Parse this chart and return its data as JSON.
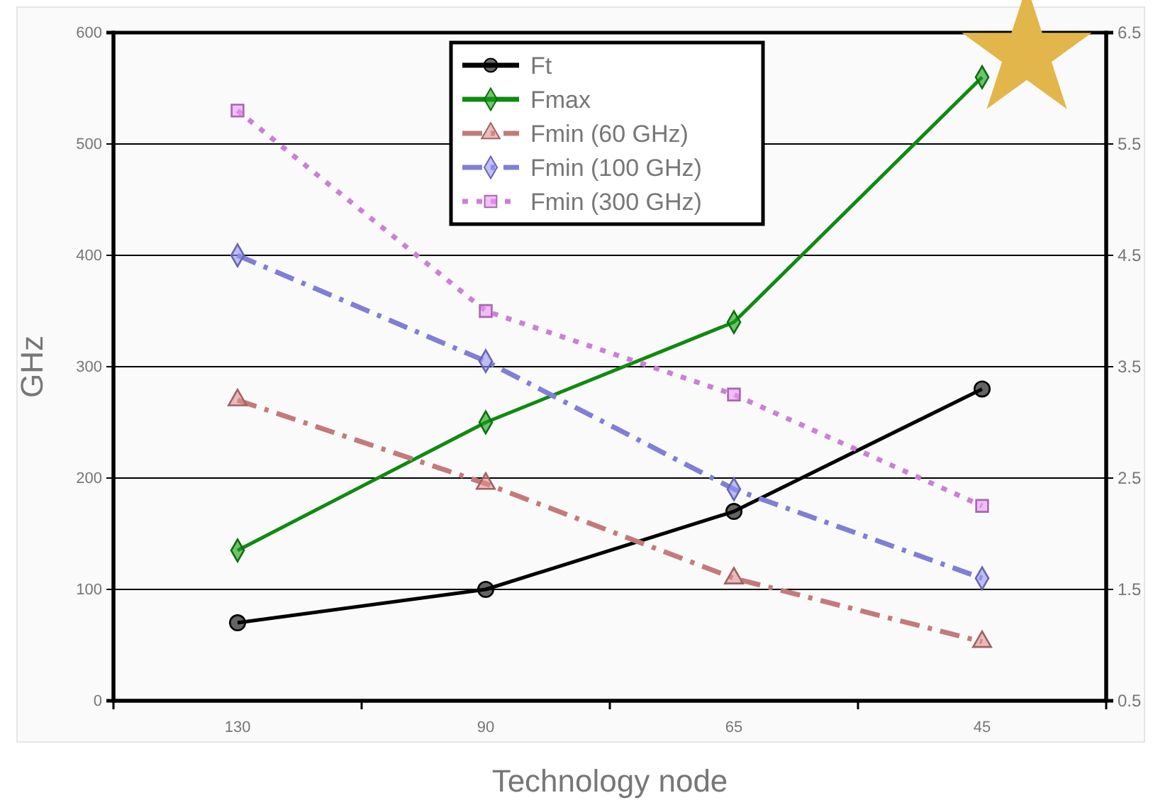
{
  "chart_data": {
    "type": "line",
    "xlabel": "Technology node",
    "ylabel": "GHz",
    "categories": [
      "130",
      "90",
      "65",
      "45"
    ],
    "ylim": [
      0,
      600
    ],
    "yticks": [
      0,
      100,
      200,
      300,
      400,
      500,
      600
    ],
    "y2lim": [
      0.5,
      6.5
    ],
    "y2ticks": [
      0.5,
      1.5,
      2.5,
      3.5,
      4.5,
      5.5,
      6.5
    ],
    "grid": "y",
    "legend": "top",
    "series": [
      {
        "name": "Ft",
        "color": "#000000",
        "marker": "circle",
        "line_style": "solid",
        "values": [
          70,
          100,
          170,
          280
        ]
      },
      {
        "name": "Fmax",
        "color": "#108a10",
        "marker": "diamond",
        "line_style": "solid",
        "values": [
          135,
          250,
          340,
          560
        ]
      },
      {
        "name": "Fmin (60 GHz)",
        "color": "#c47a7a",
        "marker": "triangle",
        "line_style": "dashed",
        "axis": "y2",
        "values": [
          3.2,
          2.45,
          1.6,
          1.03
        ]
      },
      {
        "name": "Fmin (100 GHz)",
        "color": "#7f7fd6",
        "marker": "diamond",
        "line_style": "dashed",
        "axis": "y2",
        "values": [
          4.5,
          3.55,
          2.4,
          1.6
        ]
      },
      {
        "name": "Fmin (300 GHz)",
        "color": "#cc7fd6",
        "marker": "square",
        "line_style": "dotted",
        "axis": "y2",
        "values": [
          5.8,
          4.0,
          3.25,
          2.25
        ]
      }
    ]
  }
}
